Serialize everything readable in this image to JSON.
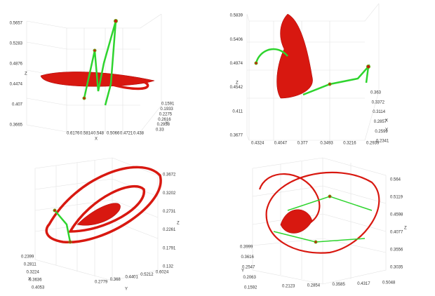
{
  "panels": [
    {
      "z_label": "Z",
      "x_label": "X",
      "y_label": "Y",
      "z_ticks": [
        "0.5657",
        "0.5283",
        "0.4876",
        "0.4474",
        "0.407",
        "0.3665"
      ],
      "x_ticks": [
        "0.6176",
        "0.5814",
        "0.548",
        "0.5066",
        "0.4721",
        "0.438"
      ],
      "y_ticks": [
        "0.1591",
        "0.1933",
        "0.2275",
        "0.2616",
        "0.2958",
        "0.33"
      ]
    },
    {
      "z_label": "Z",
      "x_label": "X",
      "y_label": "Y",
      "z_ticks": [
        "0.5839",
        "0.5406",
        "0.4974",
        "0.4542",
        "0.411",
        "0.3677"
      ],
      "x_ticks": [
        "0.4324",
        "0.4047",
        "0.377",
        "0.3493",
        "0.3216",
        "0.2939"
      ],
      "y_ticks": [
        "0.363",
        "0.3372",
        "0.3114",
        "0.2857",
        "0.2599",
        "0.2341"
      ]
    },
    {
      "z_label": "Z",
      "x_label": "X",
      "y_label": "Y",
      "z_ticks": [
        "0.3672",
        "0.3202",
        "0.2731",
        "0.2261",
        "0.1791",
        "0.132"
      ],
      "x_ticks": [
        "0.2399",
        "0.2811",
        "0.3224",
        "0.3636",
        "0.4053"
      ],
      "y_ticks": [
        "0.2779",
        "0.368",
        "0.4401",
        "0.5212",
        "0.6024"
      ]
    },
    {
      "z_label": "Z",
      "y_label": "Y",
      "z_ticks": [
        "0.564",
        "0.5119",
        "0.4598",
        "0.4077",
        "0.3556",
        "0.3035"
      ],
      "x_ticks": [
        "0.2123",
        "0.2854",
        "0.3585",
        "0.4317",
        "0.5048"
      ],
      "y_ticks": [
        "0.3999",
        "0.3616",
        "0.2547",
        "0.2063",
        "0.1592"
      ]
    }
  ]
}
